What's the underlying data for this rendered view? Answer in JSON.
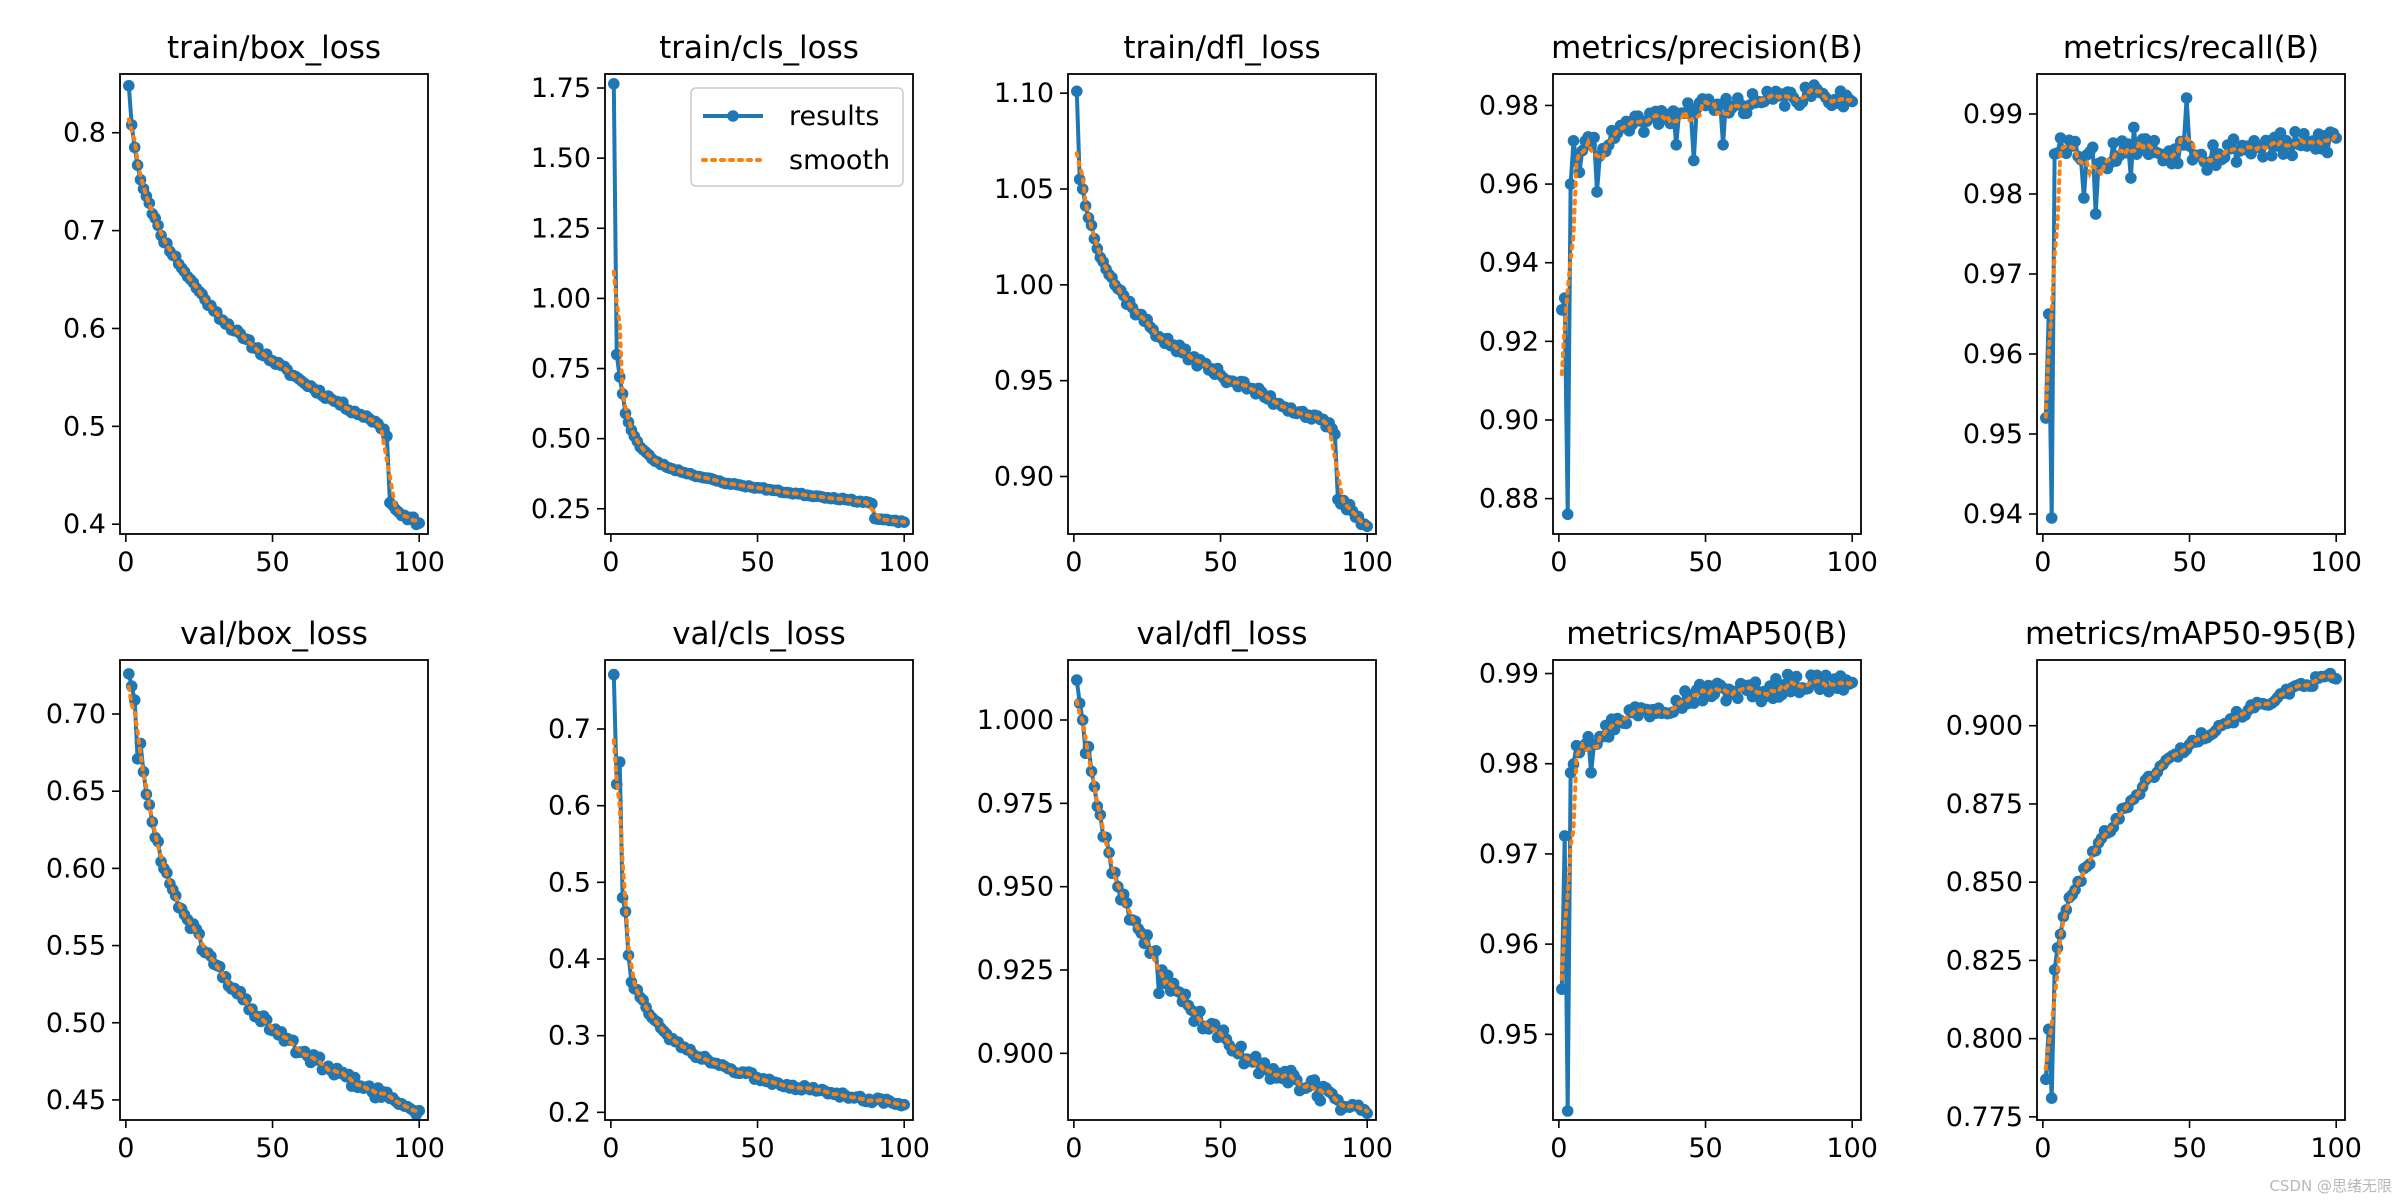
{
  "watermark": "CSDN @思绪无限",
  "legend": {
    "results_label": "results",
    "smooth_label": "smooth"
  },
  "colors": {
    "results": "#1f77b4",
    "smooth": "#ff7f0e",
    "axes": "#000000"
  },
  "chart_data": [
    {
      "type": "line",
      "title": "train/box_loss",
      "xlim": [
        -2,
        103
      ],
      "ylim": [
        0.39,
        0.86
      ],
      "xticks": [
        0,
        50,
        100
      ],
      "yticks": [
        0.4,
        0.5,
        0.6,
        0.7,
        0.8
      ],
      "ytick_labels": [
        "0.4",
        "0.5",
        "0.6",
        "0.7",
        "0.8"
      ],
      "keys": [
        [
          1,
          0.848
        ],
        [
          2,
          0.808
        ],
        [
          3,
          0.785
        ],
        [
          5,
          0.752
        ],
        [
          8,
          0.728
        ],
        [
          12,
          0.695
        ],
        [
          20,
          0.658
        ],
        [
          30,
          0.618
        ],
        [
          40,
          0.59
        ],
        [
          50,
          0.567
        ],
        [
          60,
          0.546
        ],
        [
          70,
          0.528
        ],
        [
          80,
          0.512
        ],
        [
          85,
          0.505
        ],
        [
          88,
          0.497
        ],
        [
          89,
          0.49
        ],
        [
          90,
          0.422
        ],
        [
          92,
          0.415
        ],
        [
          95,
          0.409
        ],
        [
          100,
          0.401
        ]
      ],
      "noise": 0.003,
      "seed": 11
    },
    {
      "type": "line",
      "title": "train/cls_loss",
      "legend": true,
      "xlim": [
        -2,
        103
      ],
      "ylim": [
        0.16,
        1.8
      ],
      "xticks": [
        0,
        50,
        100
      ],
      "yticks": [
        0.25,
        0.5,
        0.75,
        1.0,
        1.25,
        1.5,
        1.75
      ],
      "ytick_labels": [
        "0.25",
        "0.50",
        "0.75",
        "1.00",
        "1.25",
        "1.50",
        "1.75"
      ],
      "keys": [
        [
          1,
          1.765
        ],
        [
          2,
          0.8
        ],
        [
          3,
          0.72
        ],
        [
          4,
          0.66
        ],
        [
          5,
          0.59
        ],
        [
          7,
          0.53
        ],
        [
          10,
          0.47
        ],
        [
          15,
          0.42
        ],
        [
          20,
          0.395
        ],
        [
          30,
          0.365
        ],
        [
          40,
          0.34
        ],
        [
          50,
          0.325
        ],
        [
          60,
          0.308
        ],
        [
          70,
          0.295
        ],
        [
          80,
          0.283
        ],
        [
          88,
          0.272
        ],
        [
          89,
          0.268
        ],
        [
          90,
          0.215
        ],
        [
          95,
          0.208
        ],
        [
          100,
          0.202
        ]
      ],
      "noise": 0.003,
      "seed": 23
    },
    {
      "type": "line",
      "title": "train/dfl_loss",
      "xlim": [
        -2,
        103
      ],
      "ylim": [
        0.87,
        1.11
      ],
      "xticks": [
        0,
        50,
        100
      ],
      "yticks": [
        0.9,
        0.95,
        1.0,
        1.05,
        1.1
      ],
      "ytick_labels": [
        "0.90",
        "0.95",
        "1.00",
        "1.05",
        "1.10"
      ],
      "keys": [
        [
          1,
          1.101
        ],
        [
          2,
          1.055
        ],
        [
          3,
          1.05
        ],
        [
          5,
          1.035
        ],
        [
          10,
          1.012
        ],
        [
          15,
          0.998
        ],
        [
          20,
          0.988
        ],
        [
          30,
          0.972
        ],
        [
          40,
          0.962
        ],
        [
          50,
          0.953
        ],
        [
          60,
          0.946
        ],
        [
          70,
          0.938
        ],
        [
          80,
          0.932
        ],
        [
          88,
          0.925
        ],
        [
          89,
          0.922
        ],
        [
          90,
          0.888
        ],
        [
          95,
          0.882
        ],
        [
          100,
          0.874
        ]
      ],
      "noise": 0.0025,
      "seed": 37
    },
    {
      "type": "line",
      "title": "metrics/precision(B)",
      "xlim": [
        -2,
        103
      ],
      "ylim": [
        0.871,
        0.988
      ],
      "xticks": [
        0,
        50,
        100
      ],
      "yticks": [
        0.88,
        0.9,
        0.92,
        0.94,
        0.96,
        0.98
      ],
      "ytick_labels": [
        "0.88",
        "0.90",
        "0.92",
        "0.94",
        "0.96",
        "0.98"
      ],
      "keys": [
        [
          1,
          0.928
        ],
        [
          2,
          0.931
        ],
        [
          3,
          0.876
        ],
        [
          4,
          0.96
        ],
        [
          5,
          0.971
        ],
        [
          7,
          0.963
        ],
        [
          10,
          0.972
        ],
        [
          15,
          0.969
        ],
        [
          20,
          0.973
        ],
        [
          30,
          0.976
        ],
        [
          40,
          0.978
        ],
        [
          50,
          0.98
        ],
        [
          60,
          0.98
        ],
        [
          70,
          0.981
        ],
        [
          80,
          0.982
        ],
        [
          90,
          0.983
        ],
        [
          100,
          0.981
        ]
      ],
      "noise": 0.0025,
      "dips": [
        [
          13,
          0.958
        ],
        [
          46,
          0.966
        ],
        [
          56,
          0.97
        ],
        [
          40,
          0.97
        ]
      ],
      "seed": 41
    },
    {
      "type": "line",
      "title": "metrics/recall(B)",
      "xlim": [
        -2,
        103
      ],
      "ylim": [
        0.9375,
        0.995
      ],
      "xticks": [
        0,
        50,
        100
      ],
      "yticks": [
        0.94,
        0.95,
        0.96,
        0.97,
        0.98,
        0.99
      ],
      "ytick_labels": [
        "0.94",
        "0.95",
        "0.96",
        "0.97",
        "0.98",
        "0.99"
      ],
      "keys": [
        [
          1,
          0.952
        ],
        [
          2,
          0.965
        ],
        [
          3,
          0.9395
        ],
        [
          4,
          0.985
        ],
        [
          6,
          0.987
        ],
        [
          10,
          0.986
        ],
        [
          20,
          0.984
        ],
        [
          30,
          0.987
        ],
        [
          40,
          0.985
        ],
        [
          50,
          0.986
        ],
        [
          60,
          0.985
        ],
        [
          70,
          0.986
        ],
        [
          80,
          0.986
        ],
        [
          90,
          0.986
        ],
        [
          100,
          0.987
        ]
      ],
      "noise": 0.0018,
      "dips": [
        [
          18,
          0.9775
        ],
        [
          14,
          0.9795
        ],
        [
          49,
          0.992
        ],
        [
          30,
          0.982
        ],
        [
          56,
          0.983
        ]
      ],
      "seed": 53
    },
    {
      "type": "line",
      "title": "val/box_loss",
      "xlim": [
        -2,
        103
      ],
      "ylim": [
        0.437,
        0.735
      ],
      "xticks": [
        0,
        50,
        100
      ],
      "yticks": [
        0.45,
        0.5,
        0.55,
        0.6,
        0.65,
        0.7
      ],
      "ytick_labels": [
        "0.45",
        "0.50",
        "0.55",
        "0.60",
        "0.65",
        "0.70"
      ],
      "keys": [
        [
          1,
          0.726
        ],
        [
          2,
          0.718
        ],
        [
          3,
          0.709
        ],
        [
          4,
          0.671
        ],
        [
          5,
          0.681
        ],
        [
          7,
          0.648
        ],
        [
          10,
          0.62
        ],
        [
          15,
          0.59
        ],
        [
          20,
          0.57
        ],
        [
          30,
          0.538
        ],
        [
          40,
          0.515
        ],
        [
          50,
          0.495
        ],
        [
          60,
          0.481
        ],
        [
          70,
          0.469
        ],
        [
          80,
          0.459
        ],
        [
          90,
          0.451
        ],
        [
          100,
          0.443
        ]
      ],
      "noise": 0.004,
      "seed": 61
    },
    {
      "type": "line",
      "title": "val/cls_loss",
      "xlim": [
        -2,
        103
      ],
      "ylim": [
        0.19,
        0.79
      ],
      "xticks": [
        0,
        50,
        100
      ],
      "yticks": [
        0.2,
        0.3,
        0.4,
        0.5,
        0.6,
        0.7
      ],
      "ytick_labels": [
        "0.2",
        "0.3",
        "0.4",
        "0.5",
        "0.6",
        "0.7"
      ],
      "keys": [
        [
          1,
          0.771
        ],
        [
          2,
          0.628
        ],
        [
          3,
          0.657
        ],
        [
          4,
          0.48
        ],
        [
          5,
          0.462
        ],
        [
          6,
          0.405
        ],
        [
          7,
          0.37
        ],
        [
          10,
          0.35
        ],
        [
          15,
          0.32
        ],
        [
          20,
          0.295
        ],
        [
          30,
          0.272
        ],
        [
          40,
          0.257
        ],
        [
          50,
          0.245
        ],
        [
          60,
          0.236
        ],
        [
          70,
          0.228
        ],
        [
          80,
          0.222
        ],
        [
          90,
          0.216
        ],
        [
          100,
          0.21
        ]
      ],
      "noise": 0.004,
      "seed": 73
    },
    {
      "type": "line",
      "title": "val/dfl_loss",
      "xlim": [
        -2,
        103
      ],
      "ylim": [
        0.88,
        1.018
      ],
      "xticks": [
        0,
        50,
        100
      ],
      "yticks": [
        0.9,
        0.925,
        0.95,
        0.975,
        1.0
      ],
      "ytick_labels": [
        "0.900",
        "0.925",
        "0.950",
        "0.975",
        "1.000"
      ],
      "keys": [
        [
          1,
          1.012
        ],
        [
          2,
          1.005
        ],
        [
          3,
          1.0
        ],
        [
          4,
          0.99
        ],
        [
          5,
          0.992
        ],
        [
          7,
          0.98
        ],
        [
          10,
          0.965
        ],
        [
          15,
          0.95
        ],
        [
          20,
          0.94
        ],
        [
          30,
          0.925
        ],
        [
          40,
          0.913
        ],
        [
          50,
          0.905
        ],
        [
          60,
          0.898
        ],
        [
          70,
          0.894
        ],
        [
          80,
          0.89
        ],
        [
          90,
          0.886
        ],
        [
          100,
          0.882
        ]
      ],
      "noise": 0.003,
      "dips": [
        [
          29,
          0.918
        ]
      ],
      "seed": 89
    },
    {
      "type": "line",
      "title": "metrics/mAP50(B)",
      "xlim": [
        -2,
        103
      ],
      "ylim": [
        0.9405,
        0.9915
      ],
      "xticks": [
        0,
        50,
        100
      ],
      "yticks": [
        0.95,
        0.96,
        0.97,
        0.98,
        0.99
      ],
      "ytick_labels": [
        "0.95",
        "0.96",
        "0.97",
        "0.98",
        "0.99"
      ],
      "keys": [
        [
          1,
          0.955
        ],
        [
          2,
          0.972
        ],
        [
          3,
          0.9415
        ],
        [
          4,
          0.979
        ],
        [
          6,
          0.982
        ],
        [
          10,
          0.983
        ],
        [
          15,
          0.983
        ],
        [
          20,
          0.985
        ],
        [
          30,
          0.986
        ],
        [
          40,
          0.987
        ],
        [
          50,
          0.988
        ],
        [
          60,
          0.988
        ],
        [
          70,
          0.988
        ],
        [
          80,
          0.989
        ],
        [
          90,
          0.989
        ],
        [
          100,
          0.989
        ]
      ],
      "noise": 0.0012,
      "dips": [
        [
          11,
          0.979
        ]
      ],
      "seed": 97
    },
    {
      "type": "line",
      "title": "metrics/mAP50-95(B)",
      "xlim": [
        -2,
        103
      ],
      "ylim": [
        0.774,
        0.921
      ],
      "xticks": [
        0,
        50,
        100
      ],
      "yticks": [
        0.775,
        0.8,
        0.825,
        0.85,
        0.875,
        0.9
      ],
      "ytick_labels": [
        "0.775",
        "0.800",
        "0.825",
        "0.850",
        "0.875",
        "0.900"
      ],
      "keys": [
        [
          1,
          0.787
        ],
        [
          2,
          0.803
        ],
        [
          3,
          0.781
        ],
        [
          4,
          0.822
        ],
        [
          5,
          0.829
        ],
        [
          7,
          0.839
        ],
        [
          10,
          0.846
        ],
        [
          15,
          0.855
        ],
        [
          20,
          0.864
        ],
        [
          30,
          0.876
        ],
        [
          40,
          0.887
        ],
        [
          50,
          0.894
        ],
        [
          60,
          0.9
        ],
        [
          70,
          0.905
        ],
        [
          80,
          0.909
        ],
        [
          90,
          0.913
        ],
        [
          97,
          0.916
        ],
        [
          100,
          0.915
        ]
      ],
      "noise": 0.0015,
      "seed": 101
    }
  ]
}
